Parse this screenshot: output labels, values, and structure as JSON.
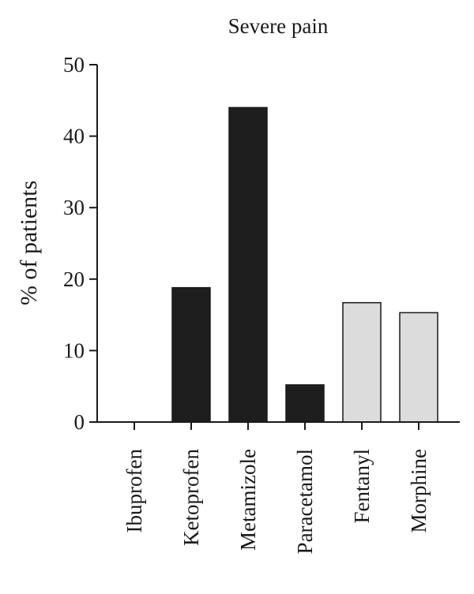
{
  "chart_data": {
    "type": "bar",
    "title": "Severe pain",
    "xlabel": "",
    "ylabel": "% of patients",
    "ylim": [
      0,
      50
    ],
    "yticks": [
      0,
      10,
      20,
      30,
      40,
      50
    ],
    "categories": [
      "Ibuprofen",
      "Ketoprofen",
      "Metamizole",
      "Paracetamol",
      "Fentanyl",
      "Morphine"
    ],
    "values": [
      0,
      18.8,
      44.0,
      5.2,
      16.7,
      15.3
    ],
    "bar_colors": [
      "#1e1e1e",
      "#1e1e1e",
      "#1e1e1e",
      "#1e1e1e",
      "#dcdcdc",
      "#dcdcdc"
    ],
    "grid": false,
    "legend": "none"
  }
}
